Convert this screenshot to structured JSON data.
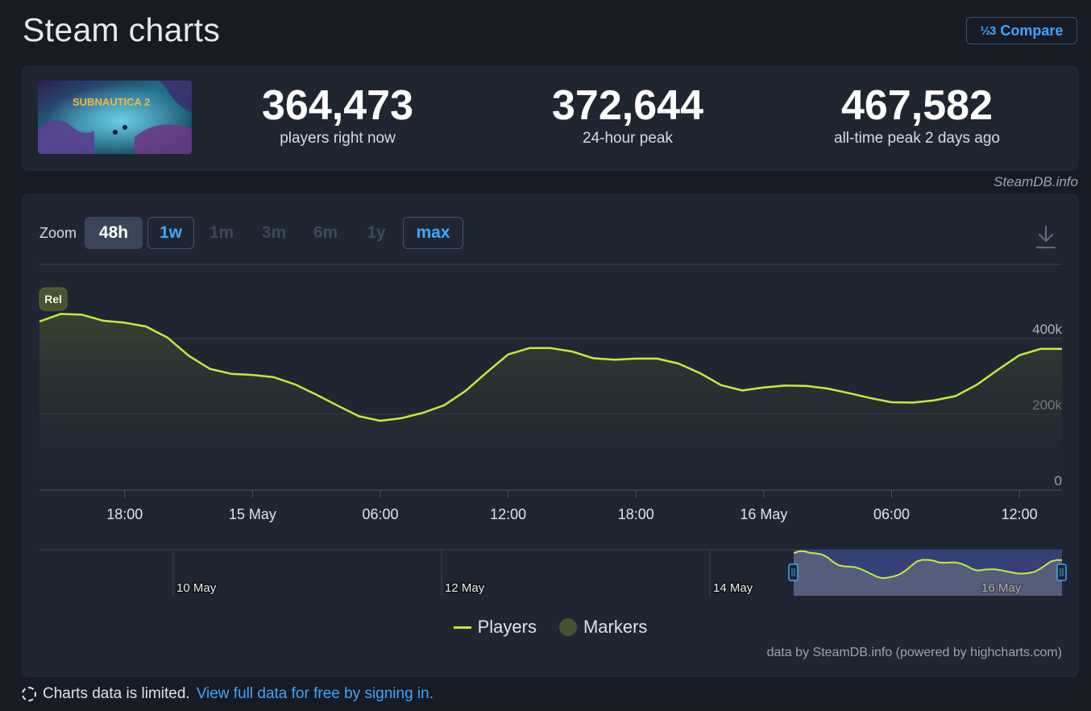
{
  "page": {
    "title": "Steam charts",
    "compare": {
      "icon_text": "½3",
      "label": "Compare"
    }
  },
  "game": {
    "name": "SUBNAUTICA 2"
  },
  "stats": [
    {
      "value": "364,473",
      "label": "players right now"
    },
    {
      "value": "372,644",
      "label": "24-hour peak"
    },
    {
      "value": "467,582",
      "label": "all-time peak 2 days ago"
    }
  ],
  "credit": "SteamDB.info",
  "zoom": {
    "label": "Zoom",
    "buttons": [
      {
        "label": "48h",
        "state": "active"
      },
      {
        "label": "1w",
        "state": "outlined"
      },
      {
        "label": "1m",
        "state": "disabled"
      },
      {
        "label": "3m",
        "state": "disabled"
      },
      {
        "label": "6m",
        "state": "disabled"
      },
      {
        "label": "1y",
        "state": "disabled"
      },
      {
        "label": "max",
        "state": "outlined"
      }
    ]
  },
  "legend": {
    "players": "Players",
    "markers": "Markers"
  },
  "hc_credit": "data by SteamDB.info (powered by highcharts.com)",
  "footer": {
    "text": "Charts data is limited.",
    "link": "View full data for free by signing in."
  },
  "colors": {
    "line": "#beee3b",
    "link": "#3ea6ff",
    "navigator_selection": "#3a4585"
  },
  "chart_data": {
    "type": "line",
    "series": [
      {
        "name": "Players",
        "x": [
          -1,
          0,
          1,
          2,
          3,
          4,
          5,
          6,
          7,
          8,
          9,
          10,
          11,
          12,
          13,
          14,
          15,
          16,
          17,
          18,
          19,
          20,
          21,
          22,
          23,
          24,
          25,
          26,
          27,
          28,
          29,
          30,
          31,
          32,
          33,
          34,
          35,
          36,
          37,
          38,
          39,
          40,
          41,
          42,
          43,
          44,
          45,
          46,
          47
        ],
        "x_note_hidden": "",
        "y": [
          445000,
          465000,
          463000,
          447000,
          442000,
          432000,
          403000,
          355000,
          320000,
          307000,
          304000,
          298000,
          279000,
          252000,
          223000,
          195000,
          183000,
          190000,
          204000,
          224000,
          262000,
          311000,
          358000,
          375000,
          375000,
          366000,
          348000,
          344000,
          347000,
          347000,
          334000,
          309000,
          277000,
          263000,
          271000,
          276000,
          275000,
          268000,
          256000,
          243000,
          232000,
          231000,
          237000,
          248000,
          278000,
          318000,
          356000,
          373000,
          373000
        ]
      }
    ],
    "x_tick_labels": [
      "18:00",
      "15 May",
      "06:00",
      "12:00",
      "18:00",
      "16 May",
      "06:00",
      "12:00"
    ],
    "y_tick_labels": [
      "0",
      "200k",
      "400k"
    ],
    "ylim": [
      0,
      400000
    ],
    "grid": true,
    "markers": [
      {
        "label": "Rel"
      }
    ],
    "navigator": {
      "labels": [
        "10 May",
        "12 May",
        "14 May",
        "16 May"
      ]
    }
  }
}
